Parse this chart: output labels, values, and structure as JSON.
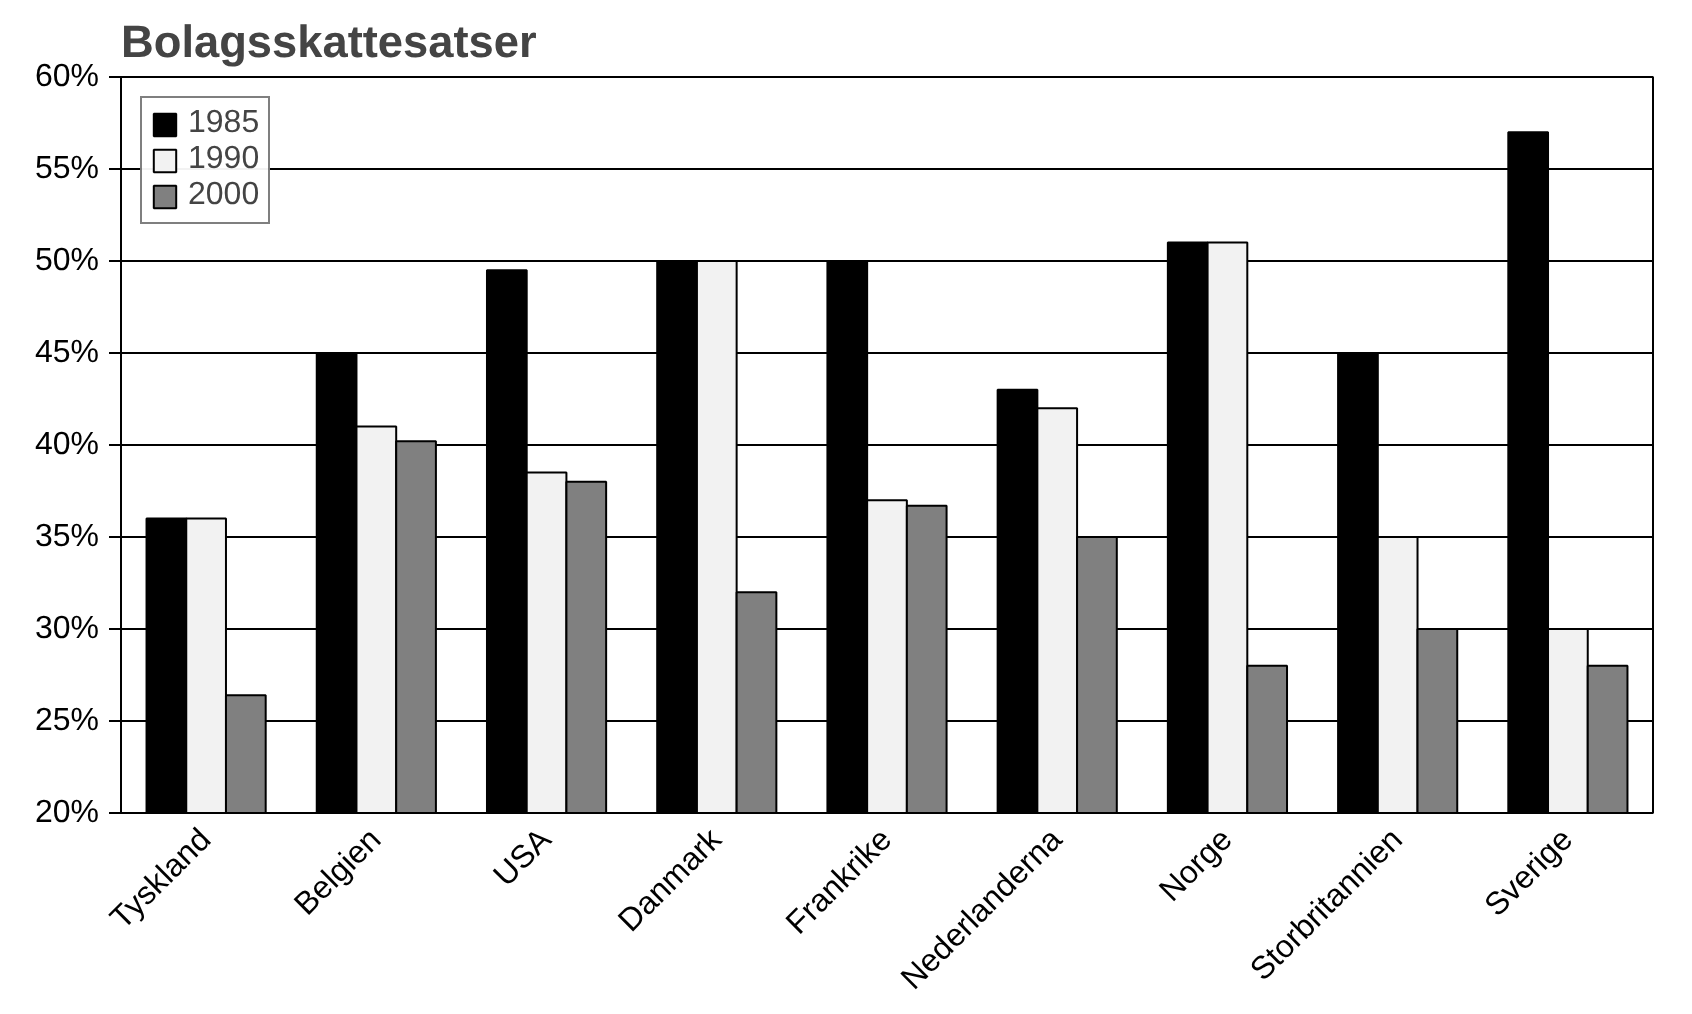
{
  "chart_data": {
    "type": "bar",
    "title": "Bolagsskattesatser",
    "categories": [
      "Tyskland",
      "Belgien",
      "USA",
      "Danmark",
      "Frankrike",
      "Nederlanderna",
      "Norge",
      "Storbritannien",
      "Sverige"
    ],
    "series": [
      {
        "name": "1985",
        "color": "#000000",
        "values": [
          36,
          45,
          49.5,
          50,
          50,
          43,
          51,
          45,
          57
        ]
      },
      {
        "name": "1990",
        "color": "#f2f2f2",
        "values": [
          36,
          41,
          38.5,
          50,
          37,
          42,
          51,
          35,
          30
        ]
      },
      {
        "name": "2000",
        "color": "#808080",
        "values": [
          26.4,
          40.2,
          38,
          32,
          36.7,
          35,
          28,
          30,
          28
        ]
      }
    ],
    "ylim": [
      20,
      60
    ],
    "yticks": [
      {
        "value": 20,
        "label": "20%"
      },
      {
        "value": 25,
        "label": "25%"
      },
      {
        "value": 30,
        "label": "30%"
      },
      {
        "value": 35,
        "label": "35%"
      },
      {
        "value": 40,
        "label": "40%"
      },
      {
        "value": 45,
        "label": "45%"
      },
      {
        "value": 50,
        "label": "50%"
      },
      {
        "value": 55,
        "label": "55%"
      },
      {
        "value": 60,
        "label": "60%"
      }
    ],
    "grid": "y",
    "legend": "top left"
  }
}
